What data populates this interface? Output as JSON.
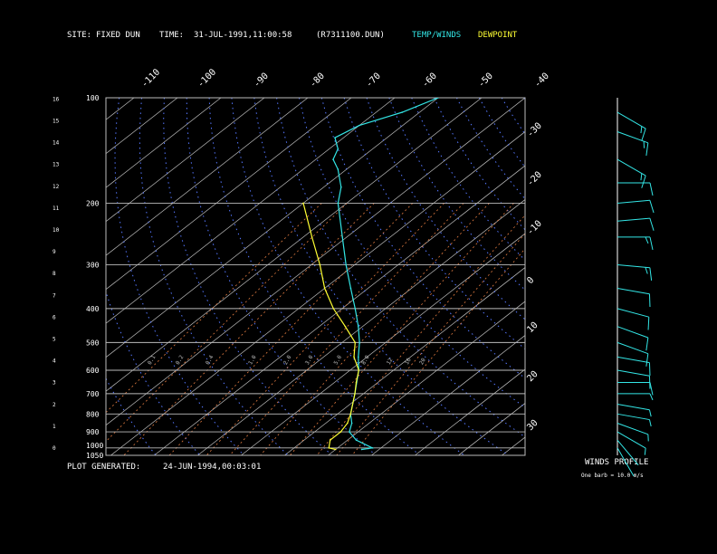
{
  "header": {
    "site_label": "SITE:",
    "site_value": "FIXED DUN",
    "time_label": "TIME:",
    "time_value": "31-JUL-1991,11:00:58",
    "file": "(R7311100.DUN)",
    "temp_legend": "TEMP/WINDS",
    "dew_legend": "DEWPOINT"
  },
  "footer": {
    "plot_label": "PLOT GENERATED:",
    "plot_value": "24-JUN-1994,00:03:01",
    "winds_title": "WINDS PROFILE",
    "barb_note": "One barb = 10.0 m/s"
  },
  "colors": {
    "temp": "#33e6e6",
    "dewpoint": "#ffff33",
    "isotherm": "#bbbbbb",
    "mixing": "#e07a40",
    "dry_adiabat": "#5577ff"
  },
  "chart_data": {
    "type": "line",
    "subtype": "skew-T log-P diagram",
    "pressure_levels": [
      1050,
      1000,
      900,
      800,
      700,
      600,
      500,
      400,
      300,
      200,
      100
    ],
    "pressure_labels": [
      "1050",
      "1000",
      "900",
      "800",
      "700",
      "600",
      "500",
      "400",
      "300",
      "200",
      "100"
    ],
    "height_km_labels": [
      "0",
      "1",
      "2",
      "3",
      "4",
      "5",
      "6",
      "7",
      "8",
      "9",
      "10",
      "11",
      "12",
      "13",
      "14",
      "15",
      "16"
    ],
    "isotherm_labels_top": [
      "-110",
      "-100",
      "-90",
      "-80",
      "-70",
      "-60",
      "-50",
      "-40"
    ],
    "isotherm_labels_right": [
      "-30",
      "-20",
      "-10",
      "0",
      "10",
      "20",
      "30"
    ],
    "mixing_ratio_labels": [
      "0.1",
      "0.2",
      "0.4",
      "1.0",
      "2.0",
      "3.0",
      "5.0",
      "8.0",
      "12",
      "16",
      "20"
    ],
    "grid": true,
    "series": [
      {
        "name": "TEMP/WINDS",
        "pressure": [
          1010,
          1000,
          950,
          900,
          850,
          800,
          700,
          600,
          550,
          500,
          450,
          400,
          350,
          300,
          250,
          200,
          180,
          160,
          150,
          140,
          130,
          120,
          110,
          100
        ],
        "temperature": [
          26,
          28,
          22,
          18,
          16,
          13,
          8,
          2,
          -2,
          -6,
          -11,
          -17,
          -24,
          -32,
          -41,
          -52,
          -56,
          -62,
          -66,
          -68,
          -72,
          -70,
          -64,
          -60
        ]
      },
      {
        "name": "DEWPOINT",
        "pressure": [
          1010,
          1000,
          950,
          900,
          850,
          800,
          700,
          650,
          600,
          550,
          500,
          450,
          400,
          350,
          300,
          250,
          200
        ],
        "temperature": [
          20,
          18,
          16,
          16,
          15,
          13,
          8,
          5,
          2,
          -3,
          -7,
          -14,
          -22,
          -30,
          -38,
          -48,
          -60
        ]
      }
    ],
    "winds": {
      "pressure": [
        1000,
        950,
        900,
        850,
        800,
        750,
        700,
        650,
        600,
        550,
        500,
        450,
        400,
        350,
        300,
        250,
        225,
        200,
        175,
        150,
        125,
        110
      ],
      "speed_ms": [
        3,
        4,
        6,
        7,
        8,
        8,
        9,
        10,
        10,
        10,
        12,
        12,
        13,
        14,
        15,
        16,
        14,
        12,
        13,
        17,
        17,
        18
      ],
      "direction_deg": [
        210,
        220,
        240,
        250,
        260,
        260,
        270,
        270,
        260,
        260,
        250,
        250,
        255,
        260,
        265,
        270,
        275,
        275,
        270,
        240,
        250,
        240
      ]
    }
  }
}
